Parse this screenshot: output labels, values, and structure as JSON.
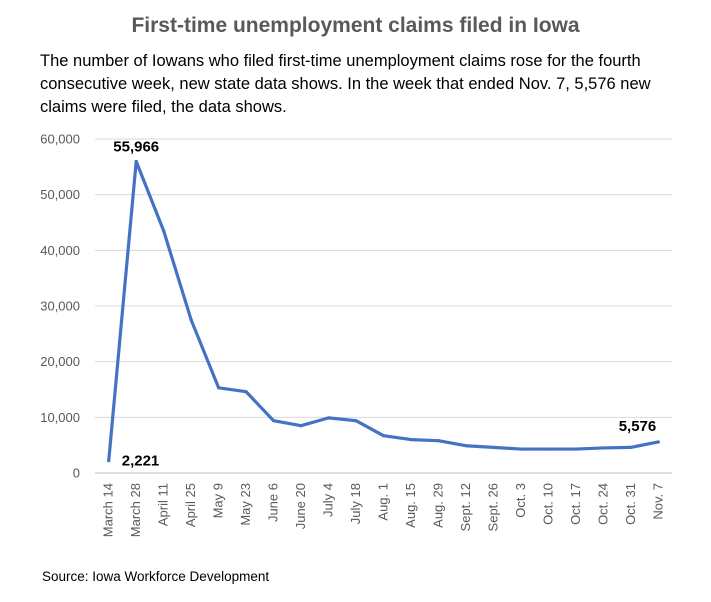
{
  "title": "First-time unemployment claims filed in Iowa",
  "subtitle": "The number of Iowans who filed first-time unemployment claims rose for the fourth consecutive week, new state data shows. In the week that ended Nov. 7, 5,576 new claims were filed, the data shows.",
  "source": "Source: Iowa Workforce Development",
  "chart_data": {
    "type": "line",
    "categories": [
      "March 14",
      "March 28",
      "April 11",
      "April 25",
      "May 9",
      "May 23",
      "June 6",
      "June 20",
      "July 4",
      "July 18",
      "Aug. 1",
      "Aug. 15",
      "Aug. 29",
      "Sept. 12",
      "Sept. 26",
      "Oct. 3",
      "Oct. 10",
      "Oct. 17",
      "Oct. 24",
      "Oct. 31",
      "Nov. 7"
    ],
    "series": [
      {
        "values": [
          2221,
          55966,
          43500,
          27500,
          15300,
          14600,
          9400,
          8500,
          9900,
          9400,
          6700,
          6000,
          5800,
          4900,
          4600,
          4300,
          4300,
          4300,
          4500,
          4600,
          5576
        ]
      }
    ],
    "ylim": [
      0,
      60000
    ],
    "yticks": [
      "0",
      "10,000",
      "20,000",
      "30,000",
      "40,000",
      "50,000",
      "60,000"
    ],
    "data_labels": [
      {
        "index": 0,
        "text": "2,221"
      },
      {
        "index": 1,
        "text": "55,966"
      },
      {
        "index": 20,
        "text": "5,576"
      }
    ],
    "line_color": "#4472C4",
    "grid": true,
    "xlabel": "",
    "ylabel": ""
  }
}
